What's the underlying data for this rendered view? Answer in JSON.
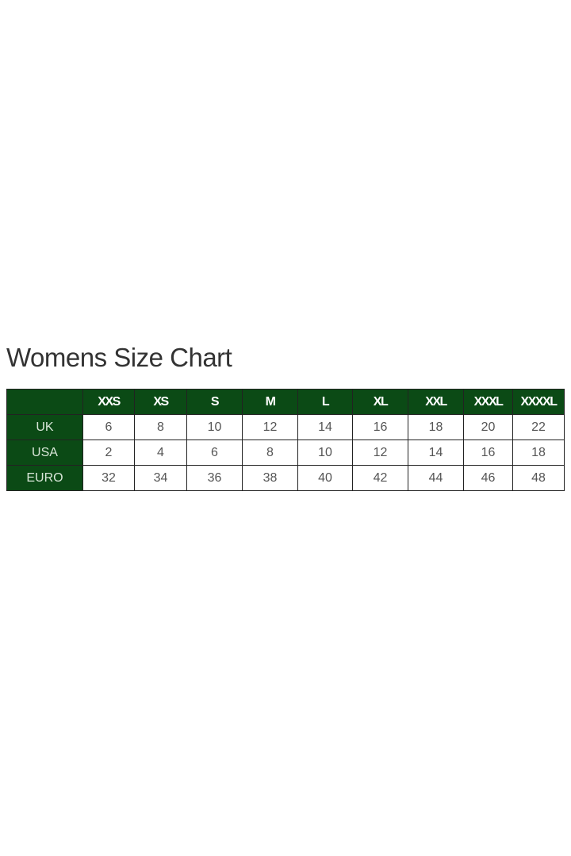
{
  "title": "Womens Size Chart",
  "colors": {
    "header_bg": "#0b4a15",
    "header_text": "#ffffff"
  },
  "table": {
    "corner": "",
    "columns": [
      "XXS",
      "XS",
      "S",
      "M",
      "L",
      "XL",
      "XXL",
      "XXXL",
      "XXXXL"
    ],
    "rows": [
      {
        "label": "UK",
        "values": [
          "6",
          "8",
          "10",
          "12",
          "14",
          "16",
          "18",
          "20",
          "22"
        ]
      },
      {
        "label": "USA",
        "values": [
          "2",
          "4",
          "6",
          "8",
          "10",
          "12",
          "14",
          "16",
          "18"
        ]
      },
      {
        "label": "EURO",
        "values": [
          "32",
          "34",
          "36",
          "38",
          "40",
          "42",
          "44",
          "46",
          "48"
        ]
      }
    ]
  }
}
